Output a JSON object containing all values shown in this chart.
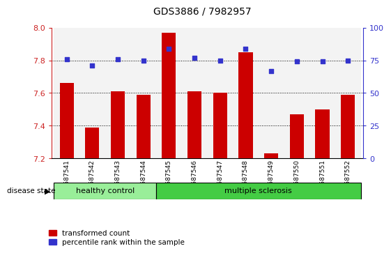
{
  "title": "GDS3886 / 7982957",
  "samples": [
    "GSM587541",
    "GSM587542",
    "GSM587543",
    "GSM587544",
    "GSM587545",
    "GSM587546",
    "GSM587547",
    "GSM587548",
    "GSM587549",
    "GSM587550",
    "GSM587551",
    "GSM587552"
  ],
  "bar_values": [
    7.66,
    7.39,
    7.61,
    7.59,
    7.97,
    7.61,
    7.6,
    7.85,
    7.23,
    7.47,
    7.5,
    7.59
  ],
  "dot_values": [
    76,
    71,
    76,
    75,
    84,
    77,
    75,
    84,
    67,
    74,
    74,
    75
  ],
  "ylim_left": [
    7.2,
    8.0
  ],
  "ylim_right": [
    0,
    100
  ],
  "yticks_left": [
    7.2,
    7.4,
    7.6,
    7.8,
    8.0
  ],
  "yticks_right": [
    0,
    25,
    50,
    75,
    100
  ],
  "grid_values": [
    7.4,
    7.6,
    7.8
  ],
  "bar_color": "#cc0000",
  "dot_color": "#3333cc",
  "bar_bottom": 7.2,
  "healthy_count": 4,
  "multiple_sclerosis_count": 8,
  "healthy_color": "#99ee99",
  "ms_color": "#44cc44",
  "group_label_healthy": "healthy control",
  "group_label_ms": "multiple sclerosis",
  "disease_state_label": "disease state",
  "legend_bar_label": "transformed count",
  "legend_dot_label": "percentile rank within the sample",
  "axis_left_color": "#cc2222",
  "axis_right_color": "#3333cc",
  "bar_width": 0.55,
  "bg_color": "#f0f0f0"
}
